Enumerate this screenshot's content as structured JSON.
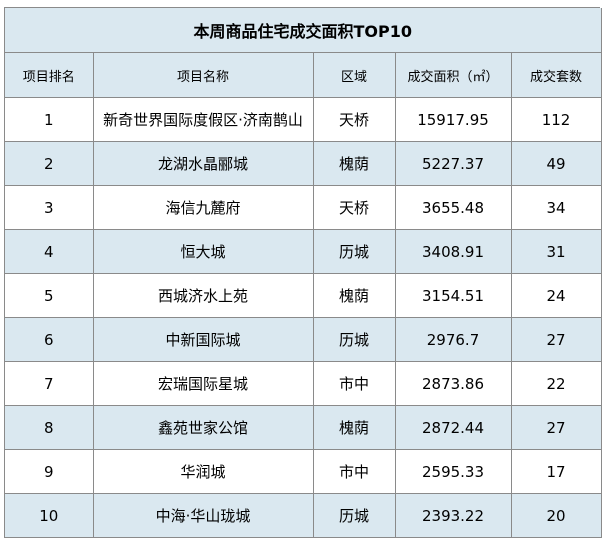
{
  "title": "本周商品住宅成交面积TOP10",
  "headers": {
    "rank": "项目排名",
    "name": "项目名称",
    "district": "区域",
    "area": "成交面积（㎡）",
    "units": "成交套数"
  },
  "rows": [
    {
      "rank": "1",
      "name": "新奇世界国际度假区·济南鹊山",
      "district": "天桥",
      "area": "15917.95",
      "units": "112"
    },
    {
      "rank": "2",
      "name": "龙湖水晶郦城",
      "district": "槐荫",
      "area": "5227.37",
      "units": "49"
    },
    {
      "rank": "3",
      "name": "海信九麓府",
      "district": "天桥",
      "area": "3655.48",
      "units": "34"
    },
    {
      "rank": "4",
      "name": "恒大城",
      "district": "历城",
      "area": "3408.91",
      "units": "31"
    },
    {
      "rank": "5",
      "name": "西城济水上苑",
      "district": "槐荫",
      "area": "3154.51",
      "units": "24"
    },
    {
      "rank": "6",
      "name": "中新国际城",
      "district": "历城",
      "area": "2976.7",
      "units": "27"
    },
    {
      "rank": "7",
      "name": "宏瑞国际星城",
      "district": "市中",
      "area": "2873.86",
      "units": "22"
    },
    {
      "rank": "8",
      "name": "鑫苑世家公馆",
      "district": "槐荫",
      "area": "2872.44",
      "units": "27"
    },
    {
      "rank": "9",
      "name": "华润城",
      "district": "市中",
      "area": "2595.33",
      "units": "17"
    },
    {
      "rank": "10",
      "name": "中海·华山珑城",
      "district": "历城",
      "area": "2393.22",
      "units": "20"
    }
  ]
}
